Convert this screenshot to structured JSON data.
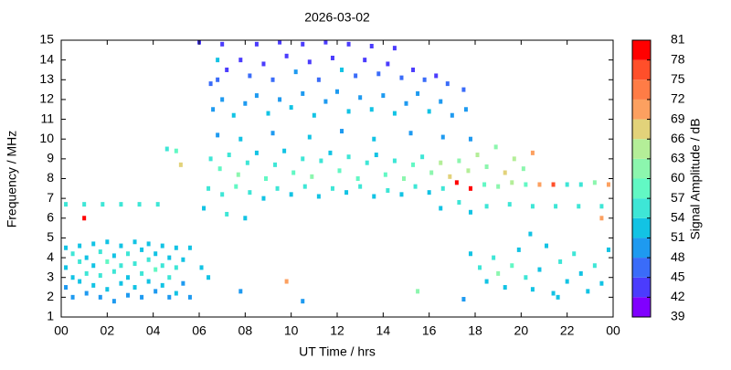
{
  "chart_data": {
    "type": "scatter",
    "title": "2026-03-02",
    "x_label": "UT Time / hrs",
    "y_label": "Frequency / MHz",
    "xlim": [
      0,
      24
    ],
    "ylim": [
      1,
      15
    ],
    "xticks": [
      {
        "value": 0,
        "label": "00"
      },
      {
        "value": 2,
        "label": "02"
      },
      {
        "value": 4,
        "label": "04"
      },
      {
        "value": 6,
        "label": "06"
      },
      {
        "value": 8,
        "label": "08"
      },
      10,
      12,
      14,
      16,
      18,
      20,
      22,
      {
        "value": 24,
        "label": "00"
      }
    ],
    "yticks": [
      1,
      2,
      3,
      4,
      5,
      6,
      7,
      8,
      9,
      10,
      11,
      12,
      13,
      14,
      15
    ],
    "colorbar": {
      "label": "Signal Amplitude / dB",
      "ticks": [
        39,
        42,
        45,
        48,
        51,
        54,
        57,
        60,
        63,
        66,
        69,
        72,
        75,
        78,
        81
      ],
      "colors": [
        "#8000ff",
        "#4b3cfd",
        "#3a6cf9",
        "#1e9af0",
        "#12c3e4",
        "#3ee6d6",
        "#62f8c4",
        "#8cf6ae",
        "#b4ee98",
        "#e2d27a",
        "#fca060",
        "#ff7c46",
        "#ff4f2a",
        "#ff0000"
      ]
    },
    "x": [
      0.2,
      0.2,
      0.2,
      0.5,
      0.5,
      0.5,
      0.8,
      0.8,
      0.8,
      1.1,
      1.1,
      1.1,
      1.4,
      1.4,
      1.4,
      1.7,
      1.7,
      1.7,
      2.0,
      2.0,
      2.0,
      2.3,
      2.3,
      2.3,
      2.6,
      2.6,
      2.6,
      2.9,
      2.9,
      2.9,
      3.2,
      3.2,
      3.2,
      3.5,
      3.5,
      3.5,
      3.8,
      3.8,
      3.8,
      4.1,
      4.1,
      4.1,
      4.4,
      4.4,
      4.4,
      4.7,
      4.7,
      4.7,
      5.0,
      5.0,
      5.0,
      5.3,
      5.3,
      5.6,
      5.6,
      6.1,
      6.4,
      0.2,
      1.0,
      1.0,
      1.8,
      2.6,
      3.4,
      4.2,
      4.6,
      5.0,
      5.2,
      8.5,
      9.5,
      10.5,
      11.5,
      12.5,
      13.5,
      14.5,
      7.2,
      7.8,
      8.2,
      8.8,
      9.2,
      9.8,
      10.2,
      10.8,
      11.2,
      11.8,
      12.2,
      12.8,
      13.2,
      13.8,
      14.2,
      14.8,
      15.3,
      15.8,
      16.3,
      16.8,
      17.5,
      6.5,
      6.8,
      6.6,
      7.0,
      7.5,
      8.0,
      8.5,
      9.0,
      9.5,
      10.0,
      10.5,
      11.0,
      11.5,
      12.0,
      12.5,
      13.0,
      13.5,
      14.0,
      14.5,
      15.0,
      15.5,
      16.0,
      16.5,
      17.0,
      17.6,
      6.8,
      7.8,
      9.2,
      10.8,
      12.2,
      13.6,
      15.2,
      16.6,
      17.8,
      6.5,
      6.9,
      7.3,
      7.7,
      8.1,
      8.5,
      8.9,
      9.3,
      9.7,
      10.1,
      10.5,
      10.9,
      11.3,
      11.7,
      12.1,
      12.5,
      12.9,
      13.3,
      13.7,
      14.1,
      14.5,
      14.9,
      15.3,
      15.7,
      16.1,
      16.5,
      16.9,
      17.3,
      17.7,
      18.1,
      18.5,
      18.9,
      19.3,
      19.7,
      20.1,
      20.5,
      6.4,
      7.0,
      7.6,
      8.2,
      8.8,
      9.4,
      10.0,
      10.6,
      11.2,
      11.8,
      12.4,
      13.0,
      13.6,
      14.2,
      14.8,
      15.4,
      16.0,
      16.6,
      17.2,
      17.8,
      18.4,
      19.0,
      19.6,
      20.2,
      20.8,
      21.4,
      22.0,
      22.6,
      23.2,
      23.8,
      6.2,
      7.2,
      8.0,
      16.5,
      17.3,
      17.8,
      18.5,
      19.5,
      20.5,
      21.5,
      22.5,
      23.5,
      23.5,
      17.8,
      18.2,
      18.5,
      18.8,
      19.0,
      19.3,
      19.6,
      19.9,
      20.2,
      20.5,
      20.8,
      21.1,
      21.4,
      21.7,
      22.0,
      22.3,
      22.6,
      22.9,
      23.2,
      23.5,
      23.8,
      21.6,
      20.4,
      7.8,
      10.5,
      15.5,
      9.8,
      17.5,
      6.8,
      6.0,
      7.0
    ],
    "y": [
      4.5,
      3.5,
      2.5,
      4.2,
      3.0,
      2.0,
      4.6,
      3.8,
      2.8,
      4.0,
      3.2,
      2.2,
      4.7,
      3.6,
      2.6,
      4.3,
      3.1,
      2.0,
      4.8,
      3.8,
      2.4,
      4.1,
      3.3,
      1.8,
      4.6,
      3.6,
      2.7,
      4.2,
      3.0,
      2.1,
      4.8,
      3.7,
      2.5,
      4.4,
      3.2,
      2.0,
      4.7,
      3.9,
      2.8,
      4.2,
      3.4,
      2.3,
      4.6,
      3.6,
      2.6,
      4.0,
      3.0,
      2.0,
      4.5,
      3.5,
      2.2,
      3.9,
      2.7,
      4.5,
      2.0,
      3.5,
      3.0,
      6.7,
      6.7,
      6.0,
      6.7,
      6.7,
      6.7,
      6.7,
      9.5,
      9.4,
      8.7,
      14.8,
      14.9,
      14.8,
      14.9,
      14.8,
      14.7,
      14.6,
      13.5,
      14.0,
      13.2,
      13.8,
      13.0,
      14.2,
      13.4,
      13.9,
      13.0,
      14.1,
      13.5,
      13.2,
      14.0,
      13.3,
      13.8,
      13.1,
      13.5,
      13.0,
      13.2,
      12.8,
      12.5,
      12.8,
      13.0,
      11.5,
      12.0,
      11.2,
      11.8,
      12.2,
      11.3,
      12.0,
      11.6,
      12.3,
      11.2,
      11.9,
      12.4,
      11.4,
      12.1,
      11.5,
      12.2,
      11.3,
      11.8,
      12.3,
      11.4,
      11.9,
      11.2,
      11.5,
      10.2,
      10.0,
      10.3,
      10.1,
      10.4,
      10.0,
      10.3,
      10.1,
      10.0,
      9.0,
      8.5,
      9.2,
      8.2,
      8.8,
      9.3,
      8.0,
      8.7,
      9.4,
      8.3,
      9.0,
      8.1,
      8.9,
      9.3,
      8.4,
      9.1,
      8.0,
      8.8,
      9.2,
      8.2,
      8.9,
      8.0,
      8.7,
      9.1,
      8.3,
      8.8,
      8.1,
      8.9,
      8.4,
      9.2,
      8.6,
      9.6,
      8.3,
      9.0,
      8.5,
      9.3,
      7.5,
      7.2,
      7.6,
      7.3,
      7.0,
      7.5,
      7.2,
      7.6,
      7.1,
      7.5,
      7.3,
      7.6,
      7.1,
      7.4,
      7.2,
      7.6,
      7.3,
      7.5,
      7.8,
      7.5,
      7.7,
      7.6,
      7.8,
      7.7,
      7.7,
      7.7,
      7.7,
      7.7,
      7.8,
      7.7,
      6.5,
      6.2,
      6.0,
      6.5,
      6.8,
      6.3,
      6.6,
      6.7,
      6.6,
      6.6,
      6.6,
      6.6,
      6.0,
      4.2,
      3.5,
      2.8,
      4.0,
      3.2,
      2.5,
      3.6,
      4.4,
      3.0,
      2.4,
      3.4,
      4.6,
      2.2,
      3.8,
      2.8,
      4.2,
      3.2,
      2.3,
      3.6,
      2.7,
      4.4,
      2.0,
      5.2,
      2.3,
      1.8,
      2.3,
      2.8,
      1.9,
      14.0,
      14.9,
      14.8
    ],
    "values": [
      51,
      51,
      48,
      54,
      51,
      48,
      51,
      54,
      51,
      51,
      54,
      48,
      51,
      51,
      51,
      54,
      54,
      48,
      51,
      57,
      51,
      51,
      54,
      48,
      51,
      54,
      51,
      54,
      51,
      48,
      51,
      54,
      51,
      51,
      54,
      48,
      51,
      54,
      51,
      51,
      57,
      48,
      51,
      54,
      51,
      51,
      54,
      48,
      51,
      54,
      51,
      51,
      48,
      51,
      48,
      51,
      51,
      54,
      54,
      78,
      54,
      54,
      54,
      54,
      54,
      57,
      66,
      42,
      42,
      42,
      42,
      42,
      42,
      42,
      42,
      42,
      45,
      42,
      45,
      42,
      48,
      42,
      45,
      42,
      51,
      45,
      42,
      45,
      42,
      45,
      42,
      45,
      42,
      45,
      45,
      45,
      45,
      48,
      48,
      51,
      48,
      48,
      51,
      48,
      51,
      48,
      51,
      48,
      48,
      51,
      48,
      51,
      48,
      51,
      48,
      48,
      51,
      48,
      48,
      48,
      48,
      51,
      48,
      51,
      48,
      51,
      48,
      48,
      48,
      54,
      57,
      54,
      60,
      54,
      51,
      57,
      54,
      51,
      57,
      54,
      60,
      54,
      51,
      57,
      54,
      57,
      54,
      51,
      57,
      54,
      60,
      57,
      54,
      60,
      63,
      66,
      60,
      63,
      63,
      60,
      60,
      66,
      63,
      60,
      69,
      54,
      54,
      57,
      54,
      51,
      54,
      51,
      54,
      51,
      54,
      51,
      54,
      51,
      54,
      51,
      54,
      51,
      54,
      78,
      78,
      57,
      60,
      63,
      57,
      69,
      75,
      54,
      54,
      60,
      69,
      51,
      54,
      51,
      51,
      54,
      51,
      54,
      54,
      54,
      54,
      54,
      54,
      69,
      51,
      54,
      51,
      54,
      60,
      51,
      57,
      51,
      54,
      51,
      51,
      51,
      51,
      54,
      51,
      54,
      51,
      51,
      54,
      51,
      51,
      51,
      51,
      48,
      48,
      60,
      69,
      48,
      51,
      42,
      42
    ]
  }
}
